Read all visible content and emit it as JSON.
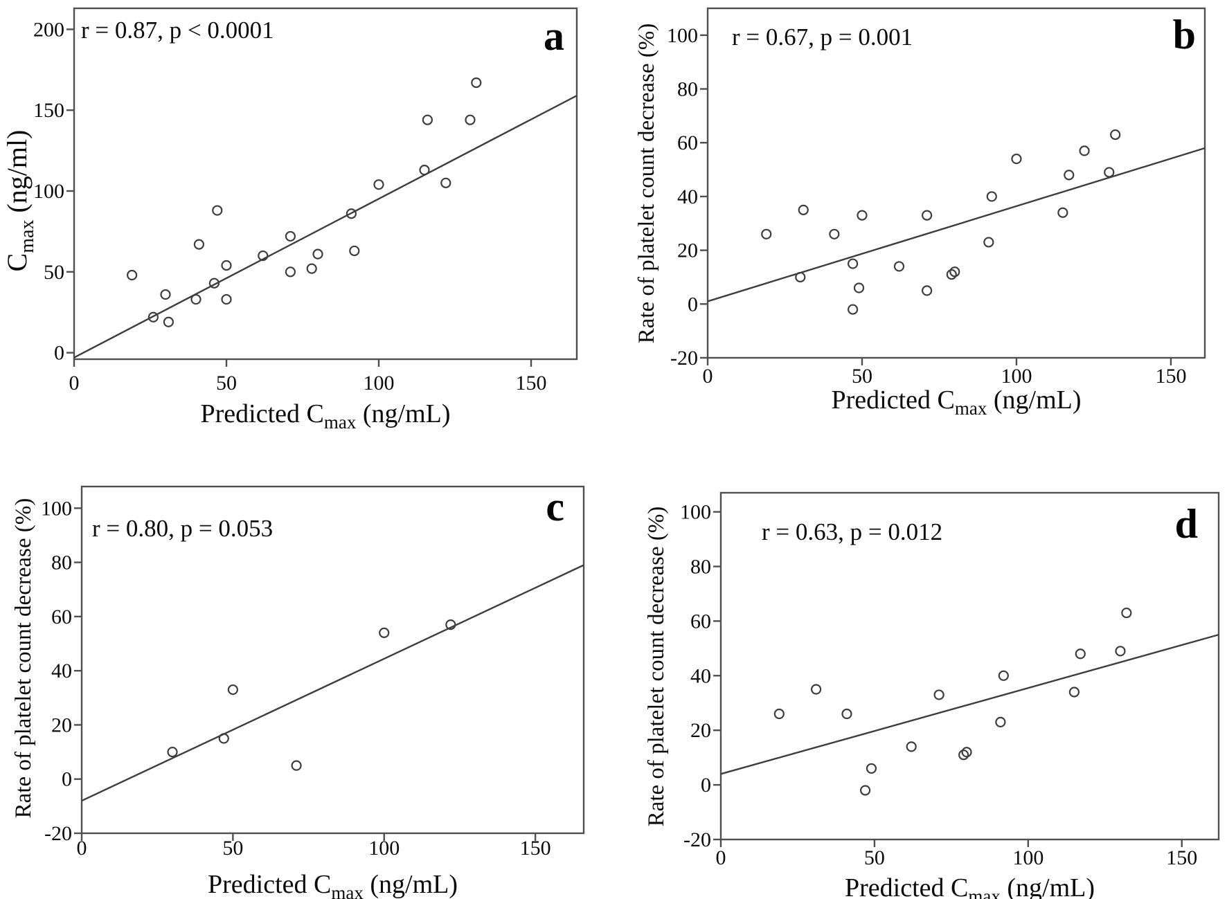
{
  "figure": {
    "background": "#ffffff",
    "axis_color": "#4f4f4f",
    "line_color": "#3d3d3d",
    "point_color": "#3d3d3d",
    "text_color": "#0b0b0b",
    "marker": "open-circle"
  },
  "chart_data": [
    {
      "id": "a",
      "type": "scatter",
      "panel_label": "a",
      "annotation": "r = 0.87, p < 0.0001",
      "xlabel": {
        "text": "Predicted C",
        "sub": "max",
        "unit": " (ng/mL)"
      },
      "ylabel": {
        "text": "C",
        "sub": "max",
        "unit": " (ng/ml)"
      },
      "xlim": [
        0,
        165
      ],
      "ylim": [
        -4,
        213
      ],
      "xticks": [
        0,
        50,
        100,
        150
      ],
      "yticks": [
        0,
        50,
        100,
        150,
        200
      ],
      "regression_line": {
        "x1": 0,
        "y1": -3,
        "x2": 165,
        "y2": 159
      },
      "points": [
        [
          19,
          48
        ],
        [
          26,
          22
        ],
        [
          30,
          36
        ],
        [
          31,
          19
        ],
        [
          40,
          33
        ],
        [
          41,
          67
        ],
        [
          46,
          43
        ],
        [
          47,
          88
        ],
        [
          50,
          54
        ],
        [
          50,
          33
        ],
        [
          62,
          60
        ],
        [
          71,
          72
        ],
        [
          71,
          50
        ],
        [
          78,
          52
        ],
        [
          80,
          61
        ],
        [
          91,
          86
        ],
        [
          92,
          63
        ],
        [
          100,
          104
        ],
        [
          115,
          113
        ],
        [
          116,
          144
        ],
        [
          122,
          105
        ],
        [
          130,
          144
        ],
        [
          132,
          167
        ]
      ]
    },
    {
      "id": "b",
      "type": "scatter",
      "panel_label": "b",
      "annotation": "r = 0.67, p = 0.001",
      "xlabel": {
        "text": "Predicted C",
        "sub": "max",
        "unit": " (ng/mL)"
      },
      "ylabel": {
        "text": "Rate of platelet  count decrease (%)"
      },
      "xlim": [
        0,
        161
      ],
      "ylim": [
        -20,
        110
      ],
      "xticks": [
        0,
        50,
        100,
        150
      ],
      "yticks": [
        -20,
        0,
        20,
        40,
        60,
        80,
        100
      ],
      "regression_line": {
        "x1": 0,
        "y1": 1,
        "x2": 161,
        "y2": 58
      },
      "points": [
        [
          19,
          26
        ],
        [
          30,
          10
        ],
        [
          31,
          35
        ],
        [
          41,
          26
        ],
        [
          47,
          15
        ],
        [
          47,
          -2
        ],
        [
          49,
          6
        ],
        [
          50,
          33
        ],
        [
          62,
          14
        ],
        [
          71,
          33
        ],
        [
          71,
          5
        ],
        [
          79,
          11
        ],
        [
          80,
          12
        ],
        [
          91,
          23
        ],
        [
          92,
          40
        ],
        [
          100,
          54
        ],
        [
          115,
          34
        ],
        [
          117,
          48
        ],
        [
          122,
          57
        ],
        [
          130,
          49
        ],
        [
          132,
          63
        ]
      ]
    },
    {
      "id": "c",
      "type": "scatter",
      "panel_label": "c",
      "annotation": "r = 0.80, p = 0.053",
      "xlabel": {
        "text": "Predicted C",
        "sub": "max",
        "unit": " (ng/mL)"
      },
      "ylabel": {
        "text": "Rate of platelet  count decrease (%)"
      },
      "xlim": [
        0,
        166
      ],
      "ylim": [
        -20,
        108
      ],
      "xticks": [
        0,
        50,
        100,
        150
      ],
      "yticks": [
        -20,
        0,
        20,
        40,
        60,
        80,
        100
      ],
      "regression_line": {
        "x1": 0,
        "y1": -8,
        "x2": 166,
        "y2": 79
      },
      "points": [
        [
          30,
          10
        ],
        [
          47,
          15
        ],
        [
          50,
          33
        ],
        [
          71,
          5
        ],
        [
          100,
          54
        ],
        [
          122,
          57
        ]
      ]
    },
    {
      "id": "d",
      "type": "scatter",
      "panel_label": "d",
      "annotation": "r = 0.63, p = 0.012",
      "xlabel": {
        "text": "Predicted C",
        "sub": "max",
        "unit": " (ng/mL)"
      },
      "ylabel": {
        "text": "Rate of platelet  count decrease (%)"
      },
      "xlim": [
        0,
        162
      ],
      "ylim": [
        -20,
        107
      ],
      "xticks": [
        0,
        50,
        100,
        150
      ],
      "yticks": [
        -20,
        0,
        20,
        40,
        60,
        80,
        100
      ],
      "regression_line": {
        "x1": 0,
        "y1": 4,
        "x2": 162,
        "y2": 55
      },
      "points": [
        [
          19,
          26
        ],
        [
          31,
          35
        ],
        [
          41,
          26
        ],
        [
          47,
          -2
        ],
        [
          49,
          6
        ],
        [
          62,
          14
        ],
        [
          71,
          33
        ],
        [
          79,
          11
        ],
        [
          80,
          12
        ],
        [
          91,
          23
        ],
        [
          92,
          40
        ],
        [
          115,
          34
        ],
        [
          117,
          48
        ],
        [
          130,
          49
        ],
        [
          132,
          63
        ]
      ]
    }
  ]
}
